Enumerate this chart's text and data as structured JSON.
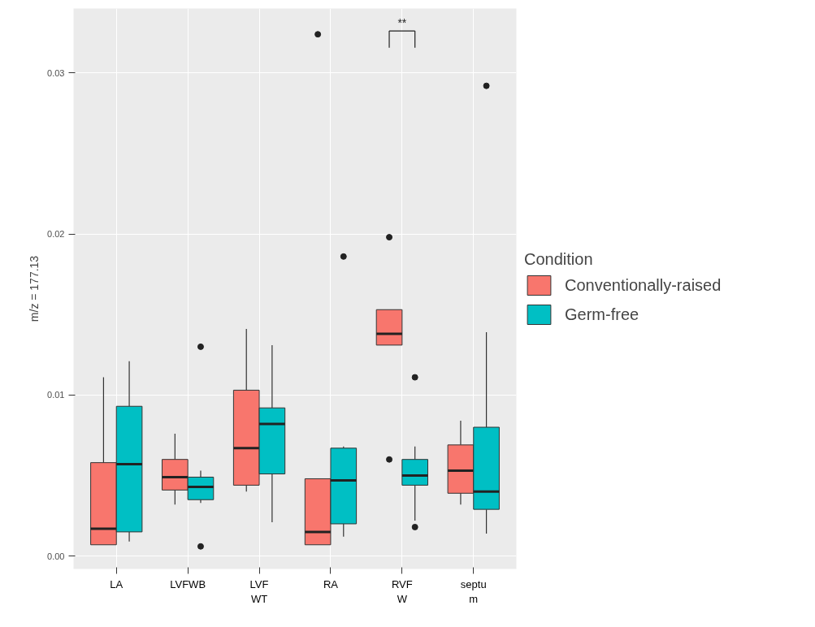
{
  "chart_data": {
    "type": "box",
    "ylabel": "m/z = 177.13",
    "legend_title": "Condition",
    "legend": "right",
    "grid": true,
    "categories": [
      "LA",
      "LVFWB",
      "LVF\nWT",
      "RA",
      "RVF\nW",
      "septu\nm"
    ],
    "ylim": [
      -0.0008,
      0.034
    ],
    "yticks": [
      {
        "value": 0,
        "label": "0.00"
      },
      {
        "value": 0.01,
        "label": "0.01"
      },
      {
        "value": 0.02,
        "label": "0.02"
      },
      {
        "value": 0.03,
        "label": "0.03"
      }
    ],
    "annotations": [
      "**"
    ],
    "series": [
      {
        "name": "Conventionally-raised",
        "color": "#f8766d",
        "boxes": [
          {
            "low": 0.0007,
            "q1": 0.0007,
            "median": 0.0017,
            "q3": 0.0058,
            "high": 0.0111
          },
          {
            "low": 0.0032,
            "q1": 0.0041,
            "median": 0.0049,
            "q3": 0.006,
            "high": 0.0076
          },
          {
            "low": 0.004,
            "q1": 0.0044,
            "median": 0.0067,
            "q3": 0.0103,
            "high": 0.0141
          },
          {
            "low": 0.0007,
            "q1": 0.0007,
            "median": 0.0015,
            "q3": 0.0048,
            "high": 0.0048,
            "outliers": [
              0.0324
            ]
          },
          {
            "low": 0.0131,
            "q1": 0.0131,
            "median": 0.0138,
            "q3": 0.0153,
            "high": 0.0153,
            "outliers": [
              0.0198,
              0.006
            ]
          },
          {
            "low": 0.0032,
            "q1": 0.0039,
            "median": 0.0053,
            "q3": 0.0069,
            "high": 0.0084
          }
        ]
      },
      {
        "name": "Germ-free",
        "color": "#00bfc4",
        "boxes": [
          {
            "low": 0.0009,
            "q1": 0.0015,
            "median": 0.0057,
            "q3": 0.0093,
            "high": 0.0121
          },
          {
            "low": 0.0033,
            "q1": 0.0035,
            "median": 0.0043,
            "q3": 0.0049,
            "high": 0.0053,
            "outliers": [
              0.013,
              0.0006
            ]
          },
          {
            "low": 0.0021,
            "q1": 0.0051,
            "median": 0.0082,
            "q3": 0.0092,
            "high": 0.0131
          },
          {
            "low": 0.0012,
            "q1": 0.002,
            "median": 0.0047,
            "q3": 0.0067,
            "high": 0.0068,
            "outliers": [
              0.0186
            ]
          },
          {
            "low": 0.0022,
            "q1": 0.0044,
            "median": 0.005,
            "q3": 0.006,
            "high": 0.0068,
            "outliers": [
              0.0111,
              0.0018
            ]
          },
          {
            "low": 0.0014,
            "q1": 0.0029,
            "median": 0.004,
            "q3": 0.008,
            "high": 0.0139,
            "outliers": [
              0.0292
            ]
          }
        ]
      }
    ]
  }
}
